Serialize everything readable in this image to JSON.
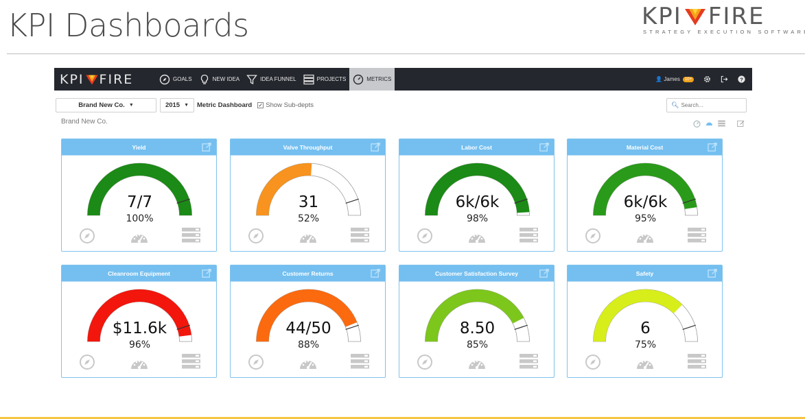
{
  "slide": {
    "title": "KPI Dashboards",
    "logo": {
      "left": "KPI",
      "right": "FIRE",
      "tagline": "STRATEGY EXECUTION SOFTWARE"
    }
  },
  "navbar": {
    "logo_left": "KPI",
    "logo_right": "FIRE",
    "items": [
      {
        "label": "Goals",
        "icon": "compass-icon",
        "active": false
      },
      {
        "label": "New Idea",
        "icon": "lightbulb-icon",
        "active": false
      },
      {
        "label": "Idea Funnel",
        "icon": "funnel-icon",
        "active": false
      },
      {
        "label": "Projects",
        "icon": "projects-icon",
        "active": false
      },
      {
        "label": "Metrics",
        "icon": "gauge-icon",
        "active": true
      }
    ],
    "user": {
      "name": "James",
      "badge": "10+"
    }
  },
  "toolbar": {
    "company": "Brand New Co.",
    "year": "2015",
    "dashboard_label": "Metric Dashboard",
    "show_subdepts": "Show Sub-depts",
    "search_placeholder": "Search..."
  },
  "breadcrumb": "Brand New Co.",
  "colors": {
    "accent": "#74bff0",
    "navbar": "#24272e",
    "badge": "#f0a21c"
  },
  "metrics": [
    {
      "title": "Yield",
      "value": "7/7",
      "percent": "100%",
      "fraction": 1.0,
      "color": "#1b8a16"
    },
    {
      "title": "Valve Throughput",
      "value": "31",
      "percent": "52%",
      "fraction": 0.52,
      "color": "#f7931e"
    },
    {
      "title": "Labor Cost",
      "value": "6k/6k",
      "percent": "98%",
      "fraction": 0.98,
      "color": "#1b8a16"
    },
    {
      "title": "Material Cost",
      "value": "6k/6k",
      "percent": "95%",
      "fraction": 0.95,
      "color": "#2a9a1a"
    },
    {
      "title": "Cleanroom Equipment",
      "value": "$11.6k",
      "percent": "96%",
      "fraction": 0.96,
      "color": "#f2160d"
    },
    {
      "title": "Customer Returns",
      "value": "44/50",
      "percent": "88%",
      "fraction": 0.88,
      "color": "#fb6a0f"
    },
    {
      "title": "Customer Satisfaction Survey",
      "value": "8.50",
      "percent": "85%",
      "fraction": 0.85,
      "color": "#7dc61c"
    },
    {
      "title": "Safety",
      "value": "6",
      "percent": "75%",
      "fraction": 0.75,
      "color": "#d7ee1a"
    }
  ]
}
